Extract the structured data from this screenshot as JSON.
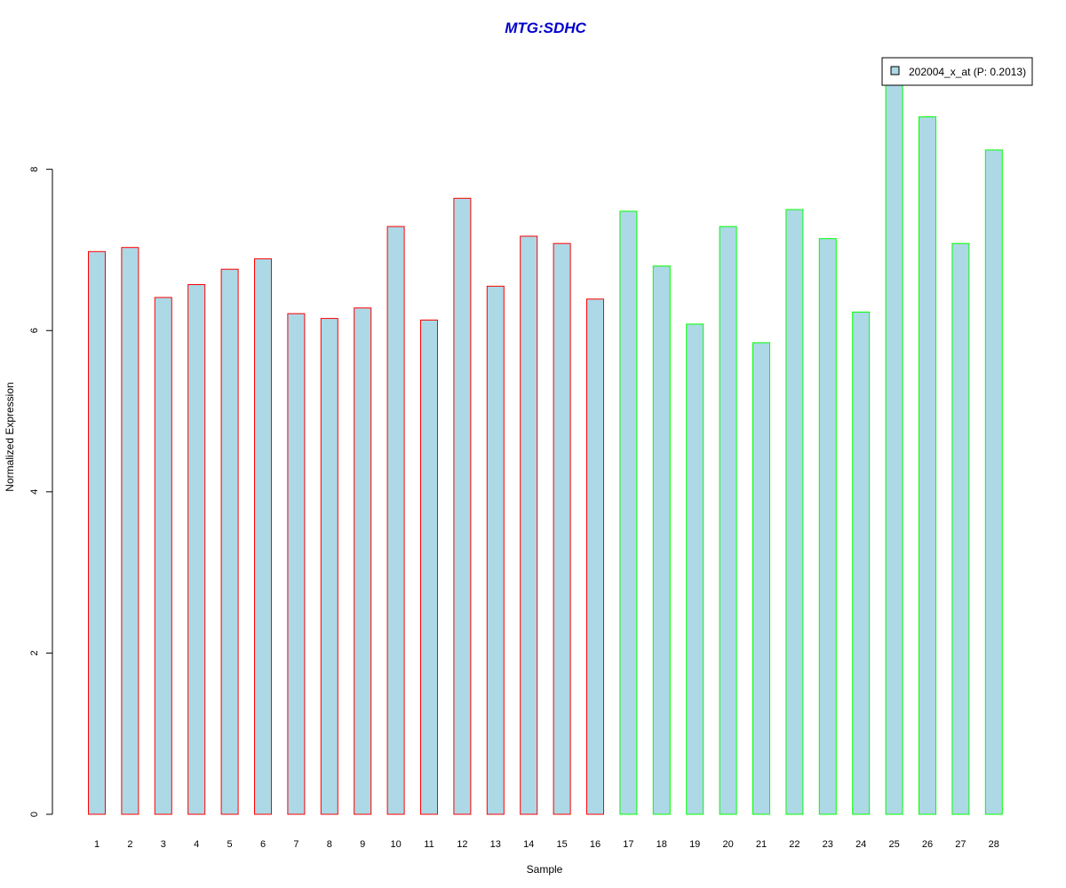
{
  "chart_data": {
    "type": "bar",
    "title": "MTG:SDHC",
    "xlabel": "Sample",
    "ylabel": "Normalized Expression",
    "categories": [
      "1",
      "2",
      "3",
      "4",
      "5",
      "6",
      "7",
      "8",
      "9",
      "10",
      "11",
      "12",
      "13",
      "14",
      "15",
      "16",
      "17",
      "18",
      "19",
      "20",
      "21",
      "22",
      "23",
      "24",
      "25",
      "26",
      "27",
      "28"
    ],
    "values": [
      6.98,
      7.03,
      6.41,
      6.57,
      6.76,
      6.89,
      6.21,
      6.15,
      6.28,
      7.29,
      6.13,
      7.64,
      6.55,
      7.17,
      7.08,
      6.39,
      7.48,
      6.8,
      6.08,
      7.29,
      5.85,
      7.5,
      7.14,
      6.23,
      9.38,
      8.65,
      7.08,
      8.24
    ],
    "groups": [
      1,
      1,
      1,
      1,
      1,
      1,
      1,
      1,
      1,
      1,
      1,
      1,
      1,
      1,
      1,
      1,
      2,
      2,
      2,
      2,
      2,
      2,
      2,
      2,
      2,
      2,
      2,
      2
    ],
    "ylim": [
      0,
      9.45
    ],
    "yticks": [
      "0",
      "2",
      "4",
      "6",
      "8"
    ],
    "legend": {
      "label": "202004_x_at (P: 0.2013)",
      "placement": "top-right"
    },
    "grid": false,
    "colors": {
      "bar_fill": "#add8e6",
      "group1_border": "#ff0000",
      "group2_border": "#00ff00",
      "title": "#0000cc"
    }
  }
}
